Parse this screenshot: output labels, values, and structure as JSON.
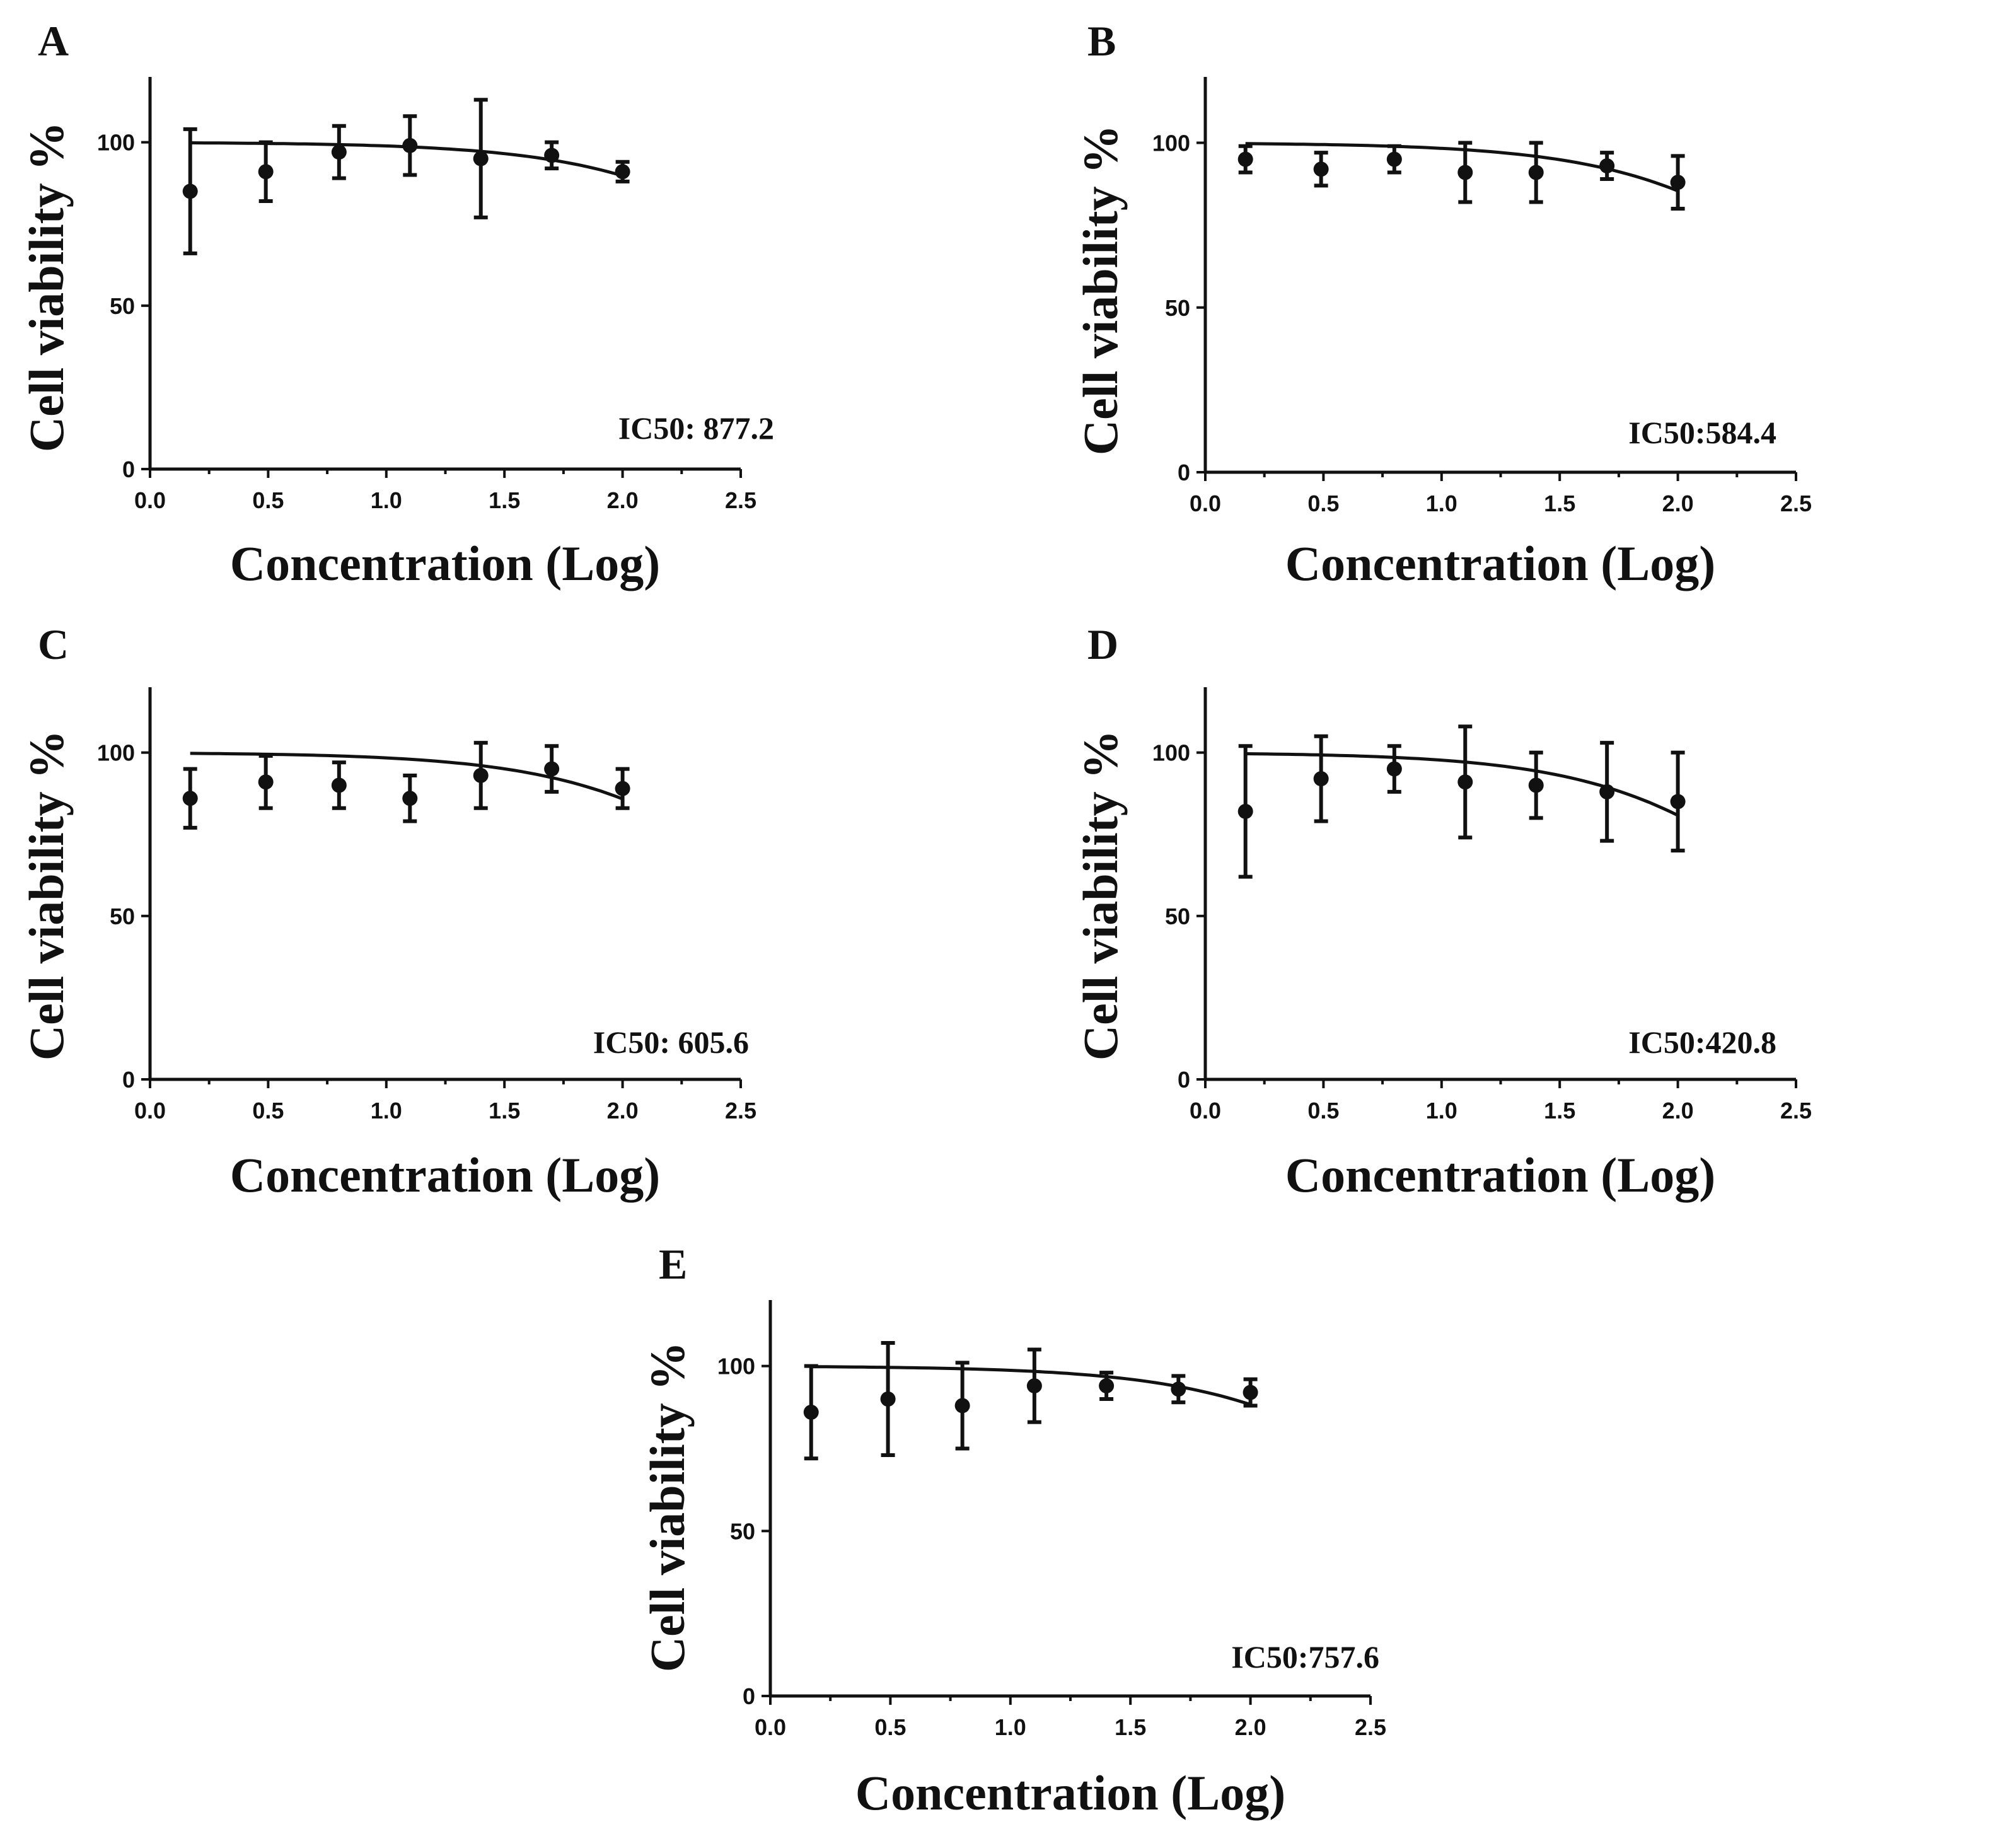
{
  "chart_data": [
    {
      "type": "scatter",
      "panel": "A",
      "xlabel": "Concentration (Log)",
      "ylabel": "Cell viability %",
      "xlim": [
        0,
        2.5
      ],
      "ylim": [
        0,
        120
      ],
      "xticks": [
        "0.0",
        "0.5",
        "1.0",
        "1.5",
        "2.0",
        "2.5"
      ],
      "yticks": [
        "0",
        "50",
        "100"
      ],
      "annotation": "IC50: 877.2",
      "series": [
        {
          "name": "data",
          "x": [
            0.17,
            0.49,
            0.8,
            1.1,
            1.4,
            1.7,
            2.0
          ],
          "y": [
            85,
            91,
            97,
            99,
            95,
            96,
            91
          ],
          "err": [
            19,
            9,
            8,
            9,
            18,
            4,
            3
          ]
        },
        {
          "name": "fit",
          "bottom": 0,
          "top": 100,
          "logIC50": 2.943
        }
      ]
    },
    {
      "type": "scatter",
      "panel": "B",
      "xlabel": "Concentration (Log)",
      "ylabel": "Cell viability %",
      "xlim": [
        0,
        2.5
      ],
      "ylim": [
        0,
        120
      ],
      "xticks": [
        "0.0",
        "0.5",
        "1.0",
        "1.5",
        "2.0",
        "2.5"
      ],
      "yticks": [
        "0",
        "50",
        "100"
      ],
      "annotation": "IC50:584.4",
      "series": [
        {
          "name": "data",
          "x": [
            0.17,
            0.49,
            0.8,
            1.1,
            1.4,
            1.7,
            2.0
          ],
          "y": [
            95,
            92,
            95,
            91,
            91,
            93,
            88
          ],
          "err": [
            4,
            5,
            4,
            9,
            9,
            4,
            8
          ]
        },
        {
          "name": "fit",
          "bottom": 0,
          "top": 100,
          "logIC50": 2.767
        }
      ]
    },
    {
      "type": "scatter",
      "panel": "C",
      "xlabel": "Concentration (Log)",
      "ylabel": "Cell viability %",
      "xlim": [
        0,
        2.5
      ],
      "ylim": [
        0,
        120
      ],
      "xticks": [
        "0.0",
        "0.5",
        "1.0",
        "1.5",
        "2.0",
        "2.5"
      ],
      "yticks": [
        "0",
        "50",
        "100"
      ],
      "annotation": "IC50: 605.6",
      "series": [
        {
          "name": "data",
          "x": [
            0.17,
            0.49,
            0.8,
            1.1,
            1.4,
            1.7,
            2.0
          ],
          "y": [
            86,
            91,
            90,
            86,
            93,
            95,
            89
          ],
          "err": [
            9,
            8,
            7,
            7,
            10,
            7,
            6
          ]
        },
        {
          "name": "fit",
          "bottom": 0,
          "top": 100,
          "logIC50": 2.782
        }
      ]
    },
    {
      "type": "scatter",
      "panel": "D",
      "xlabel": "Concentration (Log)",
      "ylabel": "Cell viability %",
      "xlim": [
        0,
        2.5
      ],
      "ylim": [
        0,
        120
      ],
      "xticks": [
        "0.0",
        "0.5",
        "1.0",
        "1.5",
        "2.0",
        "2.5"
      ],
      "yticks": [
        "0",
        "50",
        "100"
      ],
      "annotation": "IC50:420.8",
      "series": [
        {
          "name": "data",
          "x": [
            0.17,
            0.49,
            0.8,
            1.1,
            1.4,
            1.7,
            2.0
          ],
          "y": [
            82,
            92,
            95,
            91,
            90,
            88,
            85
          ],
          "err": [
            20,
            13,
            7,
            17,
            10,
            15,
            15
          ]
        },
        {
          "name": "fit",
          "bottom": 0,
          "top": 100,
          "logIC50": 2.624
        }
      ]
    },
    {
      "type": "scatter",
      "panel": "E",
      "xlabel": "Concentration (Log)",
      "ylabel": "Cell viability %",
      "xlim": [
        0,
        2.5
      ],
      "ylim": [
        0,
        120
      ],
      "xticks": [
        "0.0",
        "0.5",
        "1.0",
        "1.5",
        "2.0",
        "2.5"
      ],
      "yticks": [
        "0",
        "50",
        "100"
      ],
      "annotation": "IC50:757.6",
      "series": [
        {
          "name": "data",
          "x": [
            0.17,
            0.49,
            0.8,
            1.1,
            1.4,
            1.7,
            2.0
          ],
          "y": [
            86,
            90,
            88,
            94,
            94,
            93,
            92
          ],
          "err": [
            14,
            17,
            13,
            11,
            4,
            4,
            4
          ]
        },
        {
          "name": "fit",
          "bottom": 0,
          "top": 100,
          "logIC50": 2.879
        }
      ]
    }
  ]
}
